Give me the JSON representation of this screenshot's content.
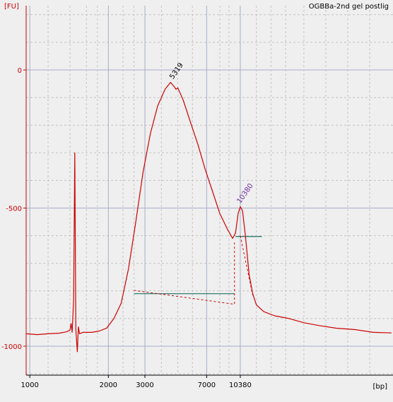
{
  "chart_data": {
    "type": "line",
    "title": "OGBBa-2nd gel postlig",
    "ylabel": "[FU]",
    "xlabel": "[bp]",
    "ylim": [
      -1100,
      200
    ],
    "yticks": [
      0,
      -500,
      -1000
    ],
    "ytick_labels": [
      "0",
      "-500",
      "-1000"
    ],
    "xlim": [
      0,
      100
    ],
    "xtick_labels": [
      {
        "label": "1000",
        "x": 1.0
      },
      {
        "label": "2000",
        "x": 22.5
      },
      {
        "label": "3000",
        "x": 32.5
      },
      {
        "label": "7000",
        "x": 49.4
      },
      {
        "label": "10380",
        "x": 58.6
      }
    ],
    "grid": true,
    "series": [
      {
        "color": "#cc0000",
        "points": [
          [
            0,
            -955
          ],
          [
            3,
            -958
          ],
          [
            6,
            -955
          ],
          [
            9,
            -953
          ],
          [
            11,
            -948
          ],
          [
            12,
            -942
          ],
          [
            12.3,
            -918
          ],
          [
            12.6,
            -950
          ],
          [
            13,
            -830
          ],
          [
            13.3,
            -300
          ],
          [
            13.6,
            -940
          ],
          [
            14.0,
            -1020
          ],
          [
            14.3,
            -930
          ],
          [
            14.6,
            -955
          ],
          [
            15.5,
            -950
          ],
          [
            18,
            -950
          ],
          [
            20,
            -945
          ],
          [
            22,
            -935
          ],
          [
            24,
            -900
          ],
          [
            26,
            -845
          ],
          [
            28,
            -720
          ],
          [
            30,
            -550
          ],
          [
            32,
            -370
          ],
          [
            34,
            -230
          ],
          [
            36,
            -130
          ],
          [
            38,
            -70
          ],
          [
            39.5,
            -45
          ],
          [
            40.5,
            -60
          ],
          [
            41,
            -70
          ],
          [
            41.5,
            -65
          ],
          [
            43,
            -110
          ],
          [
            45,
            -190
          ],
          [
            47,
            -270
          ],
          [
            49,
            -360
          ],
          [
            51,
            -440
          ],
          [
            53,
            -520
          ],
          [
            55,
            -575
          ],
          [
            56.5,
            -610
          ],
          [
            57.3,
            -590
          ],
          [
            58,
            -520
          ],
          [
            58.6,
            -495
          ],
          [
            59.2,
            -510
          ],
          [
            60,
            -600
          ],
          [
            61,
            -740
          ],
          [
            62,
            -810
          ],
          [
            63,
            -850
          ],
          [
            65,
            -875
          ],
          [
            68,
            -890
          ],
          [
            72,
            -900
          ],
          [
            76,
            -915
          ],
          [
            80,
            -925
          ],
          [
            85,
            -935
          ],
          [
            90,
            -940
          ],
          [
            95,
            -950
          ],
          [
            100,
            -952
          ]
        ]
      }
    ],
    "baseline_segments": [
      {
        "color": "#1d7060",
        "x": [
          29.5,
          57
        ],
        "y": [
          -810,
          -810
        ]
      },
      {
        "color": "#1d7060",
        "x": [
          57.3,
          64.5
        ],
        "y": [
          -603,
          -603
        ]
      }
    ],
    "dotted_segments": [
      {
        "color": "#cc0000",
        "points": [
          [
            29.5,
            -798
          ],
          [
            57,
            -848
          ],
          [
            57,
            -625
          ]
        ]
      },
      {
        "color": "#cc0000",
        "points": [
          [
            58.6,
            -600
          ],
          [
            62,
            -815
          ]
        ]
      }
    ],
    "peaks": [
      {
        "label": "5319",
        "x": 40.2,
        "y": -45,
        "color": "#000000"
      },
      {
        "label": "10380",
        "x": 58.6,
        "y": -495,
        "color": "#7030a0"
      }
    ]
  }
}
